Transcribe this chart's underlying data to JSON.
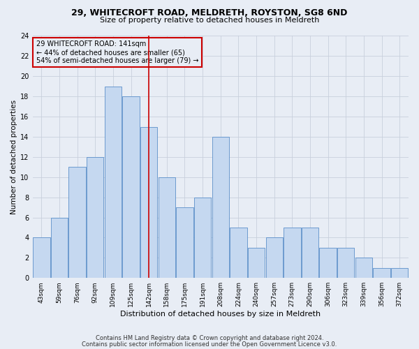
{
  "title1": "29, WHITECROFT ROAD, MELDRETH, ROYSTON, SG8 6ND",
  "title2": "Size of property relative to detached houses in Meldreth",
  "xlabel": "Distribution of detached houses by size in Meldreth",
  "ylabel": "Number of detached properties",
  "categories": [
    "43sqm",
    "59sqm",
    "76sqm",
    "92sqm",
    "109sqm",
    "125sqm",
    "142sqm",
    "158sqm",
    "175sqm",
    "191sqm",
    "208sqm",
    "224sqm",
    "240sqm",
    "257sqm",
    "273sqm",
    "290sqm",
    "306sqm",
    "323sqm",
    "339sqm",
    "356sqm",
    "372sqm"
  ],
  "values": [
    4,
    6,
    11,
    12,
    19,
    18,
    15,
    10,
    7,
    8,
    14,
    5,
    3,
    4,
    5,
    5,
    3,
    3,
    2,
    1,
    1
  ],
  "bar_color": "#c5d8f0",
  "bar_edge_color": "#5b8fc9",
  "vline_x_index": 6,
  "vline_color": "#cc0000",
  "annotation_text": "29 WHITECROFT ROAD: 141sqm\n← 44% of detached houses are smaller (65)\n54% of semi-detached houses are larger (79) →",
  "annotation_box_edge": "#cc0000",
  "ylim": [
    0,
    24
  ],
  "yticks": [
    0,
    2,
    4,
    6,
    8,
    10,
    12,
    14,
    16,
    18,
    20,
    22,
    24
  ],
  "grid_color": "#c8d0dc",
  "background_color": "#e8edf5",
  "footer1": "Contains HM Land Registry data © Crown copyright and database right 2024.",
  "footer2": "Contains public sector information licensed under the Open Government Licence v3.0."
}
